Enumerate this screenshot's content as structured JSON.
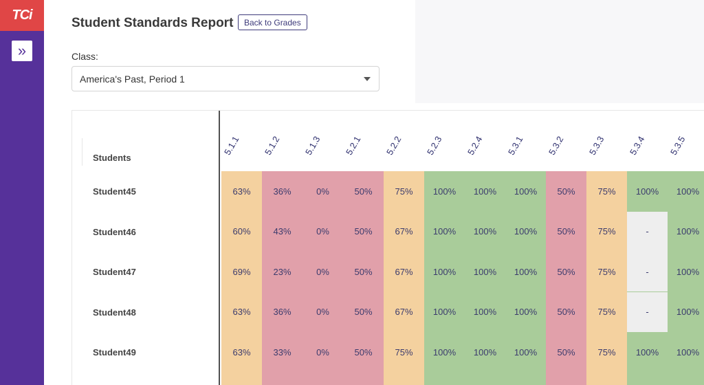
{
  "app": {
    "logo_text": "TCi",
    "expand_icon": "double-chevron-right-icon"
  },
  "header": {
    "title": "Student Standards Report",
    "back_label": "Back to Grades"
  },
  "class_picker": {
    "label": "Class:",
    "value": "America's Past, Period 1"
  },
  "table": {
    "students_header": "Students",
    "standards": [
      "5.1.1",
      "5.1.2",
      "5.1.3",
      "5.2.1",
      "5.2.2",
      "5.2.3",
      "5.2.4",
      "5.3.1",
      "5.3.2",
      "5.3.3",
      "5.3.4",
      "5.3.5"
    ],
    "column_colors": [
      "#f4d19f",
      "#e1a0aa",
      "#e1a0aa",
      "#e1a0aa",
      "#f4d19f",
      "#a9cc9a",
      "#a9cc9a",
      "#a9cc9a",
      "#e1a0aa",
      "#f4d19f",
      "#a9cc9a",
      "#a9cc9a"
    ],
    "rows": [
      {
        "student": "Student45",
        "scores": [
          "63%",
          "36%",
          "0%",
          "50%",
          "75%",
          "100%",
          "100%",
          "100%",
          "50%",
          "75%",
          "100%",
          "100%"
        ]
      },
      {
        "student": "Student46",
        "scores": [
          "60%",
          "43%",
          "0%",
          "50%",
          "67%",
          "100%",
          "100%",
          "100%",
          "50%",
          "75%",
          "-",
          "100%"
        ]
      },
      {
        "student": "Student47",
        "scores": [
          "69%",
          "23%",
          "0%",
          "50%",
          "67%",
          "100%",
          "100%",
          "100%",
          "50%",
          "75%",
          "-",
          "100%"
        ]
      },
      {
        "student": "Student48",
        "scores": [
          "63%",
          "36%",
          "0%",
          "50%",
          "67%",
          "100%",
          "100%",
          "100%",
          "50%",
          "75%",
          "-",
          "100%"
        ]
      },
      {
        "student": "Student49",
        "scores": [
          "63%",
          "33%",
          "0%",
          "50%",
          "75%",
          "100%",
          "100%",
          "100%",
          "50%",
          "75%",
          "100%",
          "100%"
        ]
      }
    ]
  }
}
